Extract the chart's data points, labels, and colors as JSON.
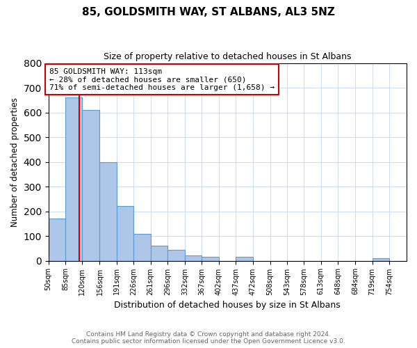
{
  "title": "85, GOLDSMITH WAY, ST ALBANS, AL3 5NZ",
  "subtitle": "Size of property relative to detached houses in St Albans",
  "xlabel": "Distribution of detached houses by size in St Albans",
  "ylabel": "Number of detached properties",
  "bin_edges": [
    50,
    85,
    120,
    156,
    191,
    226,
    261,
    296,
    332,
    367,
    402,
    437,
    472,
    508,
    543,
    578,
    613,
    648,
    684,
    719,
    754
  ],
  "bin_labels": [
    "50sqm",
    "85sqm",
    "120sqm",
    "156sqm",
    "191sqm",
    "226sqm",
    "261sqm",
    "296sqm",
    "332sqm",
    "367sqm",
    "402sqm",
    "437sqm",
    "472sqm",
    "508sqm",
    "543sqm",
    "578sqm",
    "613sqm",
    "648sqm",
    "684sqm",
    "719sqm",
    "754sqm"
  ],
  "counts": [
    170,
    660,
    610,
    400,
    220,
    110,
    60,
    45,
    20,
    15,
    0,
    15,
    0,
    0,
    0,
    0,
    0,
    0,
    0,
    10
  ],
  "bar_color": "#aec6e8",
  "bar_edge_color": "#5b9bd5",
  "property_line_x": 113,
  "property_line_color": "#cc0000",
  "ylim": [
    0,
    800
  ],
  "yticks": [
    0,
    100,
    200,
    300,
    400,
    500,
    600,
    700,
    800
  ],
  "annotation_line1": "85 GOLDSMITH WAY: 113sqm",
  "annotation_line2": "← 28% of detached houses are smaller (650)",
  "annotation_line3": "71% of semi-detached houses are larger (1,658) →",
  "annotation_box_color": "#ffffff",
  "annotation_box_edge": "#cc0000",
  "footer_line1": "Contains HM Land Registry data © Crown copyright and database right 2024.",
  "footer_line2": "Contains public sector information licensed under the Open Government Licence v3.0.",
  "background_color": "#ffffff",
  "grid_color": "#ccddee",
  "xlim_right": 790
}
